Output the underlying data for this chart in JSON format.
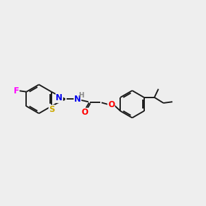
{
  "background_color": "#eeeeee",
  "bond_color": "#1a1a1a",
  "atom_colors": {
    "F": "#ff00ff",
    "S": "#ccaa00",
    "N": "#0000ee",
    "O": "#ff0000",
    "H": "#888888",
    "C": "#1a1a1a"
  },
  "figsize": [
    3.0,
    3.0
  ],
  "dpi": 100
}
